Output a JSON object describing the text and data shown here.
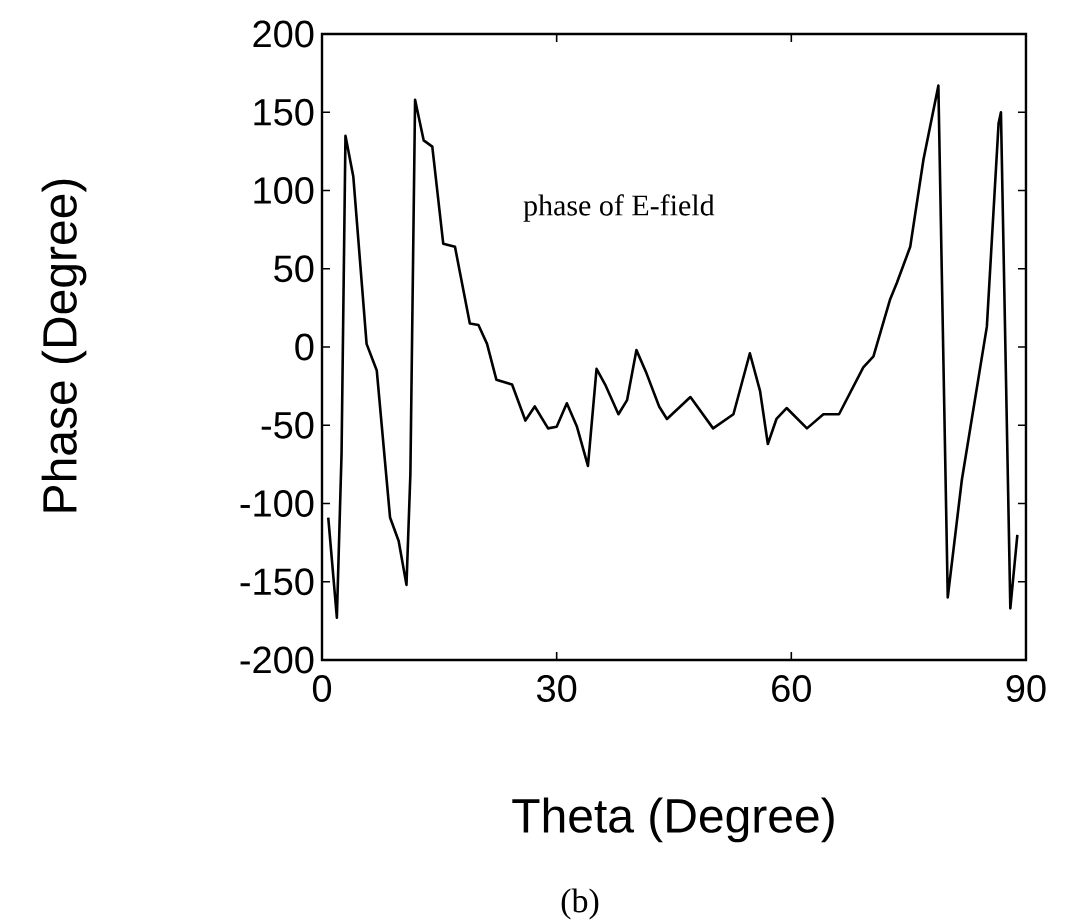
{
  "chart_data": {
    "type": "line",
    "xlabel": "Theta (Degree)",
    "ylabel": "Phase (Degree)",
    "annotations": [
      "phase of E-field",
      "(b)"
    ],
    "xlim": [
      0,
      90
    ],
    "ylim": [
      -200,
      200
    ],
    "xticks": [
      0,
      30,
      60,
      90
    ],
    "yticks": [
      -200,
      -150,
      -100,
      -50,
      0,
      50,
      100,
      150,
      200
    ],
    "grid": false,
    "marker": "none",
    "line_style": "solid",
    "series": [
      {
        "color": "#000000",
        "x": [
          0.8,
          1.9,
          2.5,
          3.0,
          4.0,
          5.7,
          7.0,
          8.7,
          9.8,
          10.8,
          11.3,
          11.9,
          13.0,
          14.1,
          15.5,
          17.0,
          18.9,
          20.0,
          21.1,
          22.3,
          24.3,
          26.0,
          27.2,
          28.9,
          30.0,
          31.3,
          32.6,
          34.0,
          35.1,
          36.2,
          37.9,
          39.0,
          40.2,
          41.5,
          43.1,
          44.1,
          47.1,
          50.0,
          52.6,
          54.7,
          56.0,
          57.0,
          58.1,
          59.4,
          62.0,
          64.1,
          66.1,
          69.2,
          70.5,
          72.6,
          73.5,
          75.2,
          76.9,
          78.8,
          80.0,
          81.8,
          85.0,
          86.5,
          86.8,
          88.0,
          88.9
        ],
        "values": [
          -109,
          -173,
          -68,
          135,
          109,
          2,
          -15,
          -109,
          -124,
          -152,
          -81,
          158,
          132,
          128,
          66,
          64,
          15,
          14,
          2,
          -21,
          -24,
          -47,
          -38,
          -52,
          -51,
          -36,
          -51,
          -76,
          -14,
          -24,
          -43,
          -34,
          -2,
          -17,
          -38,
          -46,
          -32,
          -52,
          -43,
          -4,
          -28,
          -62,
          -46,
          -39,
          -52,
          -43,
          -43,
          -13,
          -6,
          30,
          41,
          64,
          120,
          167,
          -160,
          -85,
          13,
          143,
          150,
          -167,
          -120
        ]
      }
    ]
  }
}
